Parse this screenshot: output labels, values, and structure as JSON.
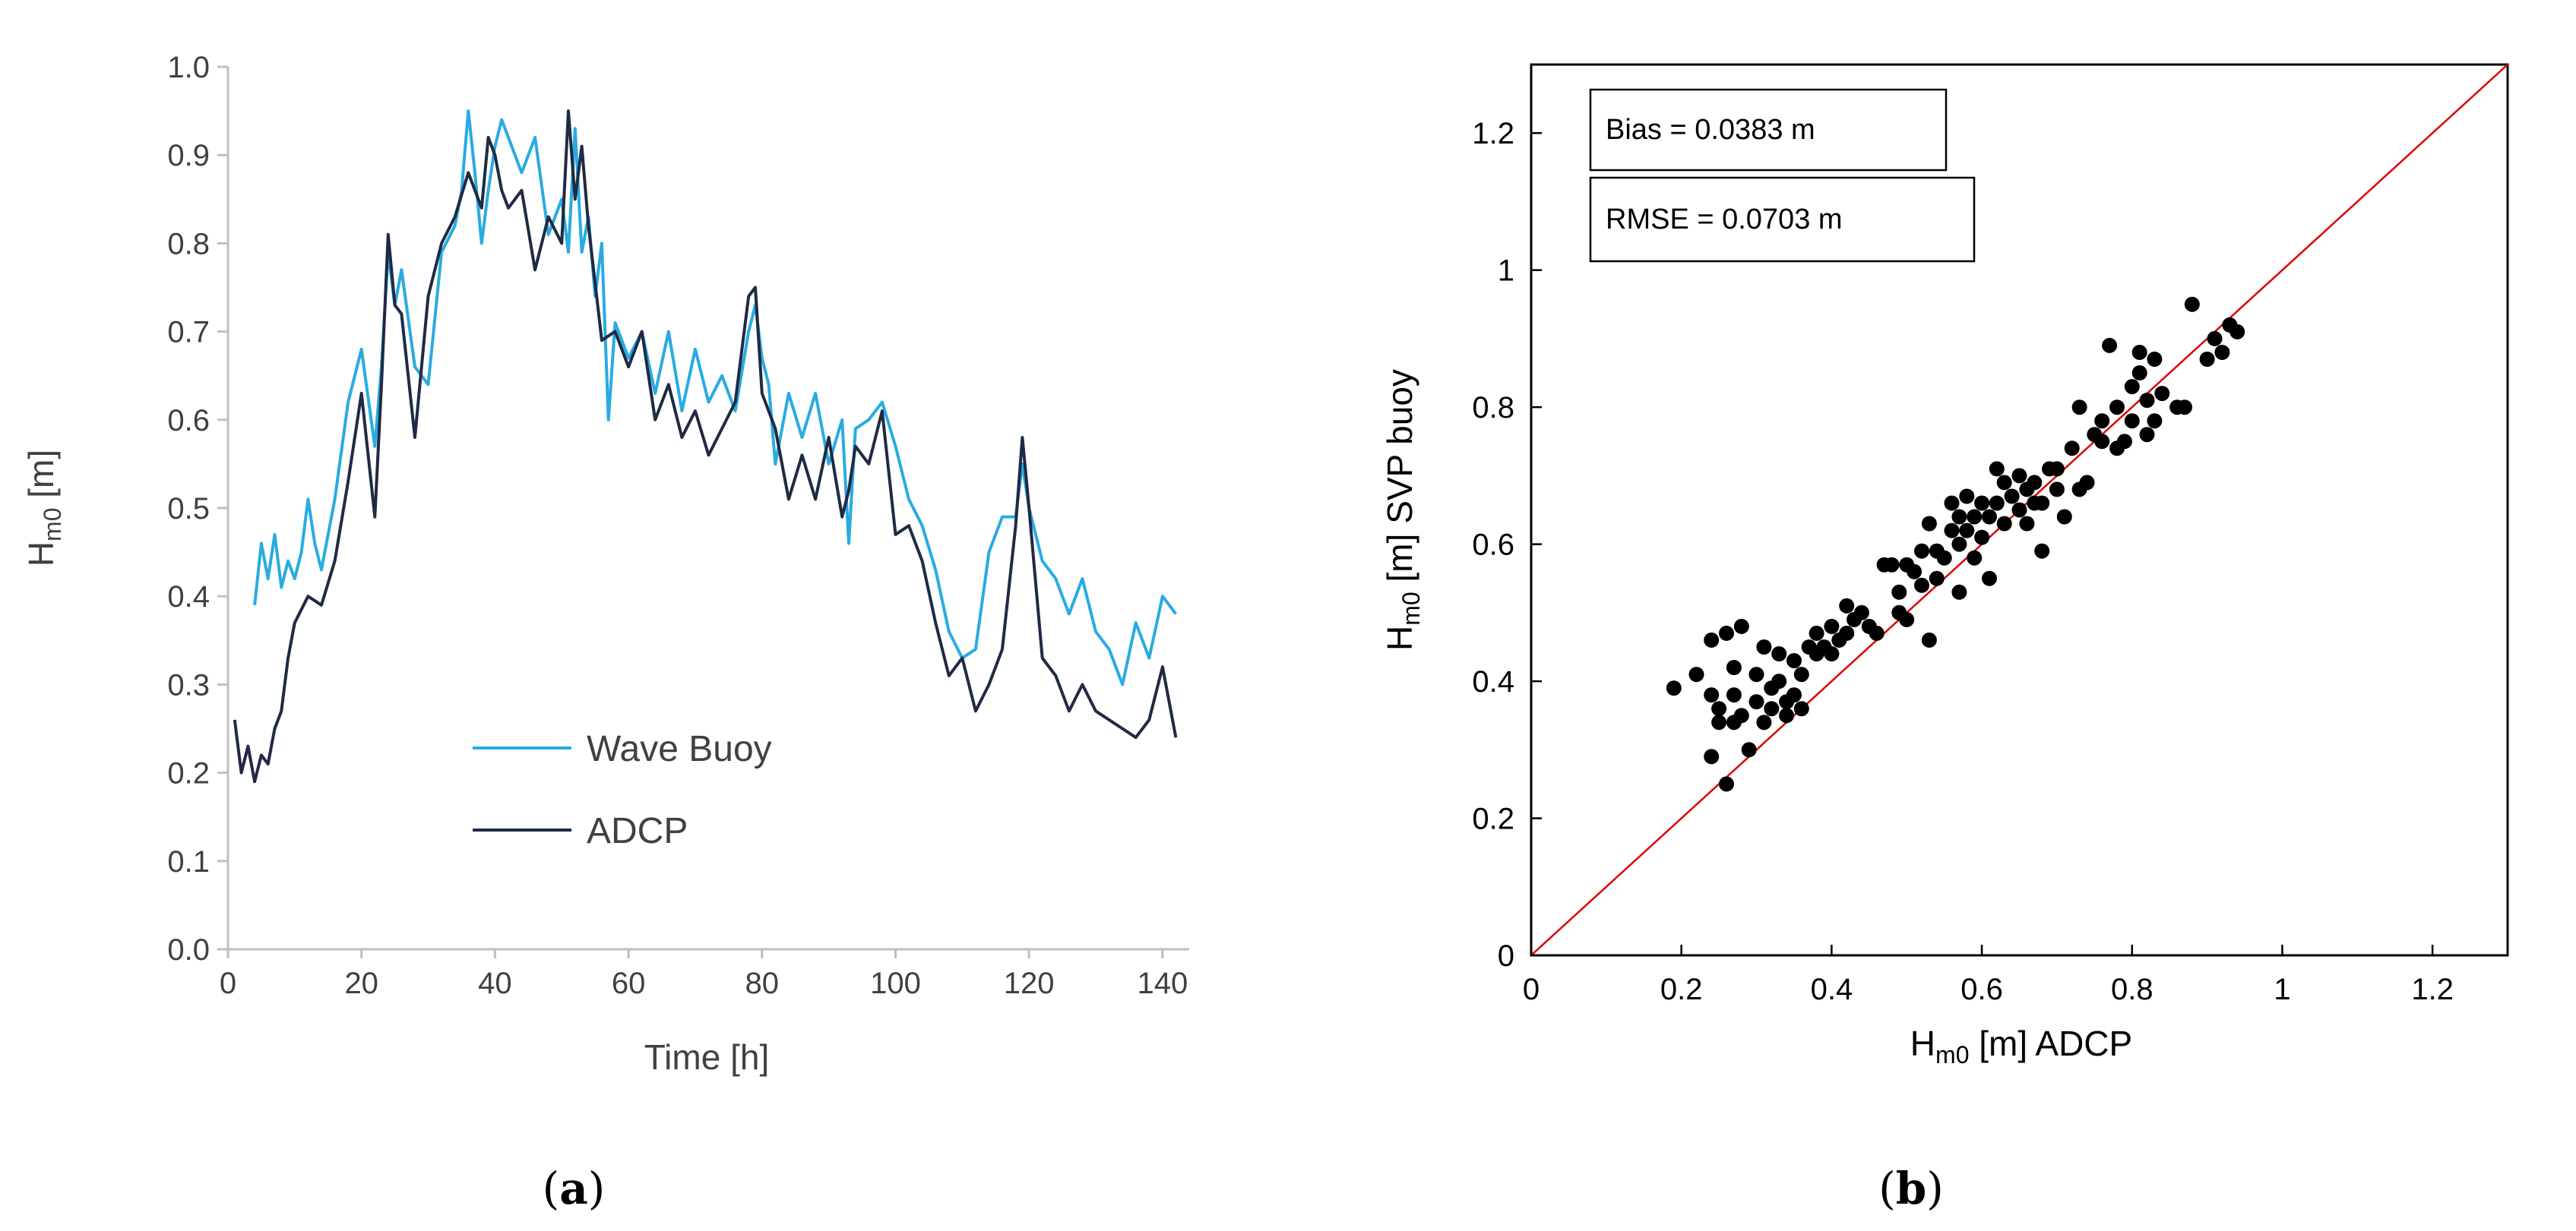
{
  "chart_data": [
    {
      "type": "line",
      "panel_label": "a",
      "xlabel": "Time  [h]",
      "ylabel_main": "H",
      "ylabel_sub": "m0",
      "ylabel_unit": " [m]",
      "xlim": [
        0,
        144
      ],
      "ylim": [
        0,
        1.0
      ],
      "xticks": [
        "0",
        "20",
        "40",
        "60",
        "80",
        "100",
        "120",
        "140"
      ],
      "xtick_values": [
        0,
        20,
        40,
        60,
        80,
        100,
        120,
        140
      ],
      "yticks": [
        "0.0",
        "0.1",
        "0.2",
        "0.3",
        "0.4",
        "0.5",
        "0.6",
        "0.7",
        "0.8",
        "0.9",
        "1.0"
      ],
      "ytick_values": [
        0,
        0.1,
        0.2,
        0.3,
        0.4,
        0.5,
        0.6,
        0.7,
        0.8,
        0.9,
        1.0
      ],
      "legend": {
        "position": "center-bottom",
        "entries": [
          "Wave Buoy",
          "ADCP"
        ]
      },
      "series": [
        {
          "name": "Wave Buoy",
          "color": "#29ABE2",
          "x": [
            4,
            5,
            6,
            7,
            8,
            9,
            10,
            11,
            12,
            13,
            14,
            16,
            18,
            20,
            22,
            23,
            24,
            25,
            26,
            28,
            30,
            32,
            34,
            35,
            36,
            37,
            38,
            39,
            40,
            41,
            42,
            44,
            46,
            48,
            50,
            51,
            52,
            53,
            54,
            55,
            56,
            57,
            58,
            60,
            62,
            64,
            66,
            68,
            70,
            72,
            74,
            76,
            78,
            79,
            80,
            81,
            82,
            84,
            86,
            88,
            90,
            92,
            93,
            94,
            96,
            98,
            100,
            102,
            104,
            106,
            108,
            110,
            112,
            114,
            116,
            118,
            119,
            120,
            122,
            124,
            126,
            128,
            130,
            132,
            134,
            136,
            138,
            140,
            142
          ],
          "values": [
            0.39,
            0.46,
            0.42,
            0.47,
            0.41,
            0.44,
            0.42,
            0.45,
            0.51,
            0.46,
            0.43,
            0.51,
            0.62,
            0.68,
            0.57,
            0.66,
            0.79,
            0.73,
            0.77,
            0.66,
            0.64,
            0.79,
            0.82,
            0.86,
            0.95,
            0.88,
            0.8,
            0.86,
            0.91,
            0.94,
            0.92,
            0.88,
            0.92,
            0.81,
            0.85,
            0.79,
            0.93,
            0.79,
            0.83,
            0.74,
            0.8,
            0.6,
            0.71,
            0.67,
            0.7,
            0.63,
            0.7,
            0.61,
            0.68,
            0.62,
            0.65,
            0.61,
            0.7,
            0.73,
            0.67,
            0.64,
            0.55,
            0.63,
            0.58,
            0.63,
            0.55,
            0.6,
            0.46,
            0.59,
            0.6,
            0.62,
            0.57,
            0.51,
            0.48,
            0.43,
            0.36,
            0.33,
            0.34,
            0.45,
            0.49,
            0.49,
            0.55,
            0.5,
            0.44,
            0.42,
            0.38,
            0.42,
            0.36,
            0.34,
            0.3,
            0.37,
            0.33,
            0.4,
            0.38
          ]
        },
        {
          "name": "ADCP",
          "color": "#1F2A44",
          "x": [
            1,
            2,
            3,
            4,
            5,
            6,
            7,
            8,
            9,
            10,
            12,
            14,
            16,
            18,
            20,
            21,
            22,
            23,
            24,
            25,
            26,
            28,
            30,
            32,
            34,
            36,
            38,
            39,
            40,
            41,
            42,
            44,
            46,
            48,
            50,
            51,
            52,
            53,
            54,
            56,
            58,
            60,
            62,
            64,
            66,
            68,
            70,
            72,
            74,
            76,
            78,
            79,
            80,
            82,
            84,
            86,
            88,
            90,
            92,
            93,
            94,
            96,
            98,
            100,
            102,
            104,
            106,
            108,
            110,
            112,
            114,
            116,
            118,
            119,
            120,
            122,
            124,
            126,
            128,
            130,
            132,
            134,
            136,
            138,
            140,
            142
          ],
          "values": [
            0.26,
            0.2,
            0.23,
            0.19,
            0.22,
            0.21,
            0.25,
            0.27,
            0.33,
            0.37,
            0.4,
            0.39,
            0.44,
            0.53,
            0.63,
            0.56,
            0.49,
            0.64,
            0.81,
            0.73,
            0.72,
            0.58,
            0.74,
            0.8,
            0.83,
            0.88,
            0.84,
            0.92,
            0.9,
            0.86,
            0.84,
            0.86,
            0.77,
            0.83,
            0.8,
            0.95,
            0.85,
            0.91,
            0.82,
            0.69,
            0.7,
            0.66,
            0.7,
            0.6,
            0.64,
            0.58,
            0.61,
            0.56,
            0.59,
            0.62,
            0.74,
            0.75,
            0.63,
            0.59,
            0.51,
            0.56,
            0.51,
            0.58,
            0.49,
            0.52,
            0.57,
            0.55,
            0.61,
            0.47,
            0.48,
            0.44,
            0.37,
            0.31,
            0.33,
            0.27,
            0.3,
            0.34,
            0.48,
            0.58,
            0.5,
            0.33,
            0.31,
            0.27,
            0.3,
            0.27,
            0.26,
            0.25,
            0.24,
            0.26,
            0.32,
            0.24
          ]
        }
      ]
    },
    {
      "type": "scatter",
      "panel_label": "b",
      "xlabel_main": "H",
      "xlabel_sub": "m0",
      "xlabel_unit": " [m]  ADCP",
      "ylabel_main": "H",
      "ylabel_sub": "m0",
      "ylabel_unit": " [m]  SVP buoy",
      "xlim": [
        0,
        1.3
      ],
      "ylim": [
        0,
        1.3
      ],
      "xticks": [
        "0",
        "0.2",
        "0.4",
        "0.6",
        "0.8",
        "1",
        "1.2"
      ],
      "xtick_values": [
        0,
        0.2,
        0.4,
        0.6,
        0.8,
        1.0,
        1.2
      ],
      "yticks": [
        "0",
        "0.2",
        "0.4",
        "0.6",
        "0.8",
        "1",
        "1.2"
      ],
      "ytick_values": [
        0,
        0.2,
        0.4,
        0.6,
        0.8,
        1.0,
        1.2
      ],
      "reference_line": {
        "label": "1:1",
        "color": "#E00000"
      },
      "annotations": [
        "Bias = 0.0383 m",
        "RMSE = 0.0703 m"
      ],
      "points": [
        [
          0.19,
          0.39
        ],
        [
          0.22,
          0.41
        ],
        [
          0.24,
          0.46
        ],
        [
          0.24,
          0.38
        ],
        [
          0.25,
          0.36
        ],
        [
          0.24,
          0.29
        ],
        [
          0.25,
          0.34
        ],
        [
          0.26,
          0.47
        ],
        [
          0.26,
          0.25
        ],
        [
          0.27,
          0.34
        ],
        [
          0.27,
          0.42
        ],
        [
          0.27,
          0.38
        ],
        [
          0.28,
          0.35
        ],
        [
          0.28,
          0.48
        ],
        [
          0.29,
          0.3
        ],
        [
          0.3,
          0.37
        ],
        [
          0.3,
          0.41
        ],
        [
          0.31,
          0.45
        ],
        [
          0.31,
          0.34
        ],
        [
          0.32,
          0.39
        ],
        [
          0.32,
          0.36
        ],
        [
          0.33,
          0.44
        ],
        [
          0.33,
          0.4
        ],
        [
          0.34,
          0.37
        ],
        [
          0.34,
          0.35
        ],
        [
          0.35,
          0.38
        ],
        [
          0.35,
          0.43
        ],
        [
          0.36,
          0.41
        ],
        [
          0.36,
          0.36
        ],
        [
          0.37,
          0.45
        ],
        [
          0.38,
          0.44
        ],
        [
          0.38,
          0.47
        ],
        [
          0.39,
          0.45
        ],
        [
          0.4,
          0.44
        ],
        [
          0.4,
          0.48
        ],
        [
          0.41,
          0.46
        ],
        [
          0.42,
          0.51
        ],
        [
          0.42,
          0.47
        ],
        [
          0.43,
          0.49
        ],
        [
          0.44,
          0.5
        ],
        [
          0.45,
          0.48
        ],
        [
          0.46,
          0.47
        ],
        [
          0.47,
          0.57
        ],
        [
          0.48,
          0.57
        ],
        [
          0.49,
          0.53
        ],
        [
          0.49,
          0.5
        ],
        [
          0.5,
          0.49
        ],
        [
          0.5,
          0.57
        ],
        [
          0.51,
          0.56
        ],
        [
          0.52,
          0.54
        ],
        [
          0.52,
          0.59
        ],
        [
          0.53,
          0.46
        ],
        [
          0.53,
          0.63
        ],
        [
          0.54,
          0.55
        ],
        [
          0.54,
          0.59
        ],
        [
          0.55,
          0.58
        ],
        [
          0.56,
          0.62
        ],
        [
          0.56,
          0.66
        ],
        [
          0.57,
          0.64
        ],
        [
          0.57,
          0.6
        ],
        [
          0.57,
          0.53
        ],
        [
          0.58,
          0.67
        ],
        [
          0.58,
          0.62
        ],
        [
          0.59,
          0.58
        ],
        [
          0.59,
          0.64
        ],
        [
          0.6,
          0.66
        ],
        [
          0.6,
          0.61
        ],
        [
          0.61,
          0.55
        ],
        [
          0.61,
          0.64
        ],
        [
          0.62,
          0.66
        ],
        [
          0.62,
          0.71
        ],
        [
          0.63,
          0.63
        ],
        [
          0.63,
          0.69
        ],
        [
          0.64,
          0.67
        ],
        [
          0.65,
          0.65
        ],
        [
          0.65,
          0.7
        ],
        [
          0.66,
          0.63
        ],
        [
          0.66,
          0.68
        ],
        [
          0.67,
          0.66
        ],
        [
          0.67,
          0.69
        ],
        [
          0.68,
          0.59
        ],
        [
          0.68,
          0.66
        ],
        [
          0.69,
          0.71
        ],
        [
          0.7,
          0.68
        ],
        [
          0.7,
          0.71
        ],
        [
          0.71,
          0.64
        ],
        [
          0.72,
          0.74
        ],
        [
          0.73,
          0.68
        ],
        [
          0.73,
          0.8
        ],
        [
          0.74,
          0.69
        ],
        [
          0.75,
          0.76
        ],
        [
          0.76,
          0.75
        ],
        [
          0.76,
          0.78
        ],
        [
          0.77,
          0.89
        ],
        [
          0.78,
          0.8
        ],
        [
          0.78,
          0.74
        ],
        [
          0.79,
          0.75
        ],
        [
          0.8,
          0.78
        ],
        [
          0.8,
          0.83
        ],
        [
          0.81,
          0.85
        ],
        [
          0.81,
          0.88
        ],
        [
          0.82,
          0.76
        ],
        [
          0.82,
          0.81
        ],
        [
          0.83,
          0.78
        ],
        [
          0.83,
          0.87
        ],
        [
          0.84,
          0.82
        ],
        [
          0.86,
          0.8
        ],
        [
          0.87,
          0.8
        ],
        [
          0.88,
          0.95
        ],
        [
          0.9,
          0.87
        ],
        [
          0.91,
          0.9
        ],
        [
          0.92,
          0.88
        ],
        [
          0.93,
          0.92
        ],
        [
          0.94,
          0.91
        ]
      ]
    }
  ]
}
